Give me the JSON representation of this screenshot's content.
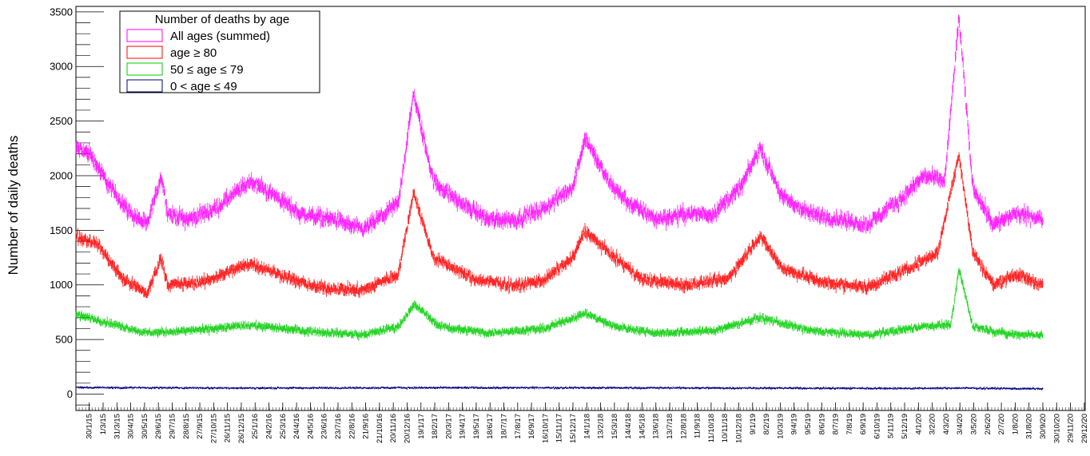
{
  "chart_data": {
    "type": "scatter",
    "title": "",
    "ylabel": "Number of daily deaths",
    "xlabel": "",
    "ylim": [
      -150,
      3550
    ],
    "yticks": [
      0,
      500,
      1000,
      1500,
      2000,
      2500,
      3000,
      3500
    ],
    "x_start": "2015-01-01",
    "x_end": "2020-12-31",
    "xtick_labels": [
      "30/1/15",
      "1/3/15",
      "31/3/15",
      "30/4/15",
      "30/5/15",
      "29/6/15",
      "29/7/15",
      "28/8/15",
      "27/9/15",
      "27/10/15",
      "26/11/15",
      "26/12/15",
      "25/1/16",
      "24/2/16",
      "25/3/16",
      "24/4/16",
      "24/5/16",
      "23/6/16",
      "23/7/16",
      "22/8/16",
      "21/9/16",
      "21/10/16",
      "20/11/16",
      "20/12/16",
      "19/1/17",
      "18/2/17",
      "20/3/17",
      "19/4/17",
      "19/5/17",
      "18/6/17",
      "18/7/17",
      "17/8/17",
      "16/9/17",
      "16/10/17",
      "15/11/17",
      "15/12/17",
      "14/1/18",
      "13/2/18",
      "15/3/18",
      "14/4/18",
      "14/5/18",
      "13/6/18",
      "13/7/18",
      "12/8/18",
      "11/9/18",
      "11/10/18",
      "10/11/18",
      "10/12/18",
      "9/1/19",
      "8/2/19",
      "10/3/19",
      "9/4/19",
      "9/5/19",
      "8/6/19",
      "8/7/19",
      "7/8/19",
      "6/9/19",
      "6/10/19",
      "5/11/19",
      "5/12/19",
      "4/1/20",
      "3/2/20",
      "4/3/20",
      "3/4/20",
      "3/5/20",
      "2/6/20",
      "2/7/20",
      "1/8/20",
      "31/8/20",
      "30/9/20",
      "30/10/20",
      "29/11/20",
      "29/12/20"
    ],
    "data_end": "2020-09-30",
    "legend": {
      "title": "Number of deaths by age",
      "placement": "top-left"
    },
    "series": [
      {
        "name": "All ages (summed)",
        "color": "#ff00ff",
        "approx_points": [
          [
            "2015-01-01",
            2250
          ],
          [
            "2015-02-01",
            2200
          ],
          [
            "2015-03-15",
            1900
          ],
          [
            "2015-05-01",
            1650
          ],
          [
            "2015-06-05",
            1550
          ],
          [
            "2015-07-05",
            2000
          ],
          [
            "2015-07-20",
            1650
          ],
          [
            "2015-09-01",
            1600
          ],
          [
            "2015-11-01",
            1700
          ],
          [
            "2016-01-15",
            1950
          ],
          [
            "2016-03-15",
            1800
          ],
          [
            "2016-05-01",
            1650
          ],
          [
            "2016-07-15",
            1600
          ],
          [
            "2016-09-15",
            1500
          ],
          [
            "2016-12-01",
            1750
          ],
          [
            "2017-01-03",
            2750
          ],
          [
            "2017-02-15",
            1950
          ],
          [
            "2017-04-15",
            1750
          ],
          [
            "2017-06-15",
            1600
          ],
          [
            "2017-08-15",
            1600
          ],
          [
            "2017-10-15",
            1700
          ],
          [
            "2017-12-15",
            1900
          ],
          [
            "2018-01-10",
            2350
          ],
          [
            "2018-03-01",
            1950
          ],
          [
            "2018-04-15",
            1750
          ],
          [
            "2018-06-15",
            1600
          ],
          [
            "2018-08-15",
            1650
          ],
          [
            "2018-10-15",
            1650
          ],
          [
            "2018-12-15",
            1900
          ],
          [
            "2019-01-25",
            2250
          ],
          [
            "2019-03-15",
            1800
          ],
          [
            "2019-05-15",
            1650
          ],
          [
            "2019-07-15",
            1600
          ],
          [
            "2019-09-15",
            1550
          ],
          [
            "2019-12-01",
            1800
          ],
          [
            "2020-01-15",
            2000
          ],
          [
            "2020-03-01",
            1950
          ],
          [
            "2020-04-01",
            3450
          ],
          [
            "2020-05-01",
            1900
          ],
          [
            "2020-06-15",
            1550
          ],
          [
            "2020-08-01",
            1650
          ],
          [
            "2020-09-30",
            1600
          ]
        ]
      },
      {
        "name": "age ≥ 80",
        "color": "#ff0000",
        "approx_points": [
          [
            "2015-01-01",
            1450
          ],
          [
            "2015-02-15",
            1380
          ],
          [
            "2015-04-15",
            1050
          ],
          [
            "2015-06-05",
            920
          ],
          [
            "2015-07-05",
            1250
          ],
          [
            "2015-07-20",
            1000
          ],
          [
            "2015-10-01",
            1020
          ],
          [
            "2016-01-15",
            1200
          ],
          [
            "2016-03-15",
            1100
          ],
          [
            "2016-06-01",
            980
          ],
          [
            "2016-09-15",
            950
          ],
          [
            "2016-12-01",
            1100
          ],
          [
            "2017-01-03",
            1850
          ],
          [
            "2017-02-15",
            1250
          ],
          [
            "2017-05-15",
            1050
          ],
          [
            "2017-08-15",
            990
          ],
          [
            "2017-10-15",
            1050
          ],
          [
            "2017-12-15",
            1250
          ],
          [
            "2018-01-10",
            1500
          ],
          [
            "2018-03-01",
            1300
          ],
          [
            "2018-05-15",
            1050
          ],
          [
            "2018-08-15",
            1000
          ],
          [
            "2018-11-15",
            1050
          ],
          [
            "2019-01-25",
            1450
          ],
          [
            "2019-03-15",
            1150
          ],
          [
            "2019-06-15",
            1020
          ],
          [
            "2019-09-15",
            980
          ],
          [
            "2019-12-15",
            1150
          ],
          [
            "2020-02-15",
            1300
          ],
          [
            "2020-04-01",
            2200
          ],
          [
            "2020-05-01",
            1300
          ],
          [
            "2020-06-15",
            1000
          ],
          [
            "2020-08-01",
            1100
          ],
          [
            "2020-09-30",
            1000
          ]
        ]
      },
      {
        "name": "50 ≤ age ≤ 79",
        "color": "#00cc00",
        "approx_points": [
          [
            "2015-01-01",
            730
          ],
          [
            "2015-03-15",
            650
          ],
          [
            "2015-06-01",
            560
          ],
          [
            "2015-09-01",
            580
          ],
          [
            "2016-01-15",
            630
          ],
          [
            "2016-05-15",
            580
          ],
          [
            "2016-09-15",
            540
          ],
          [
            "2016-12-01",
            620
          ],
          [
            "2017-01-05",
            820
          ],
          [
            "2017-03-01",
            620
          ],
          [
            "2017-06-15",
            560
          ],
          [
            "2017-10-15",
            600
          ],
          [
            "2018-01-10",
            740
          ],
          [
            "2018-03-15",
            620
          ],
          [
            "2018-06-15",
            560
          ],
          [
            "2018-10-15",
            580
          ],
          [
            "2019-01-25",
            700
          ],
          [
            "2019-05-15",
            580
          ],
          [
            "2019-09-15",
            540
          ],
          [
            "2020-01-15",
            620
          ],
          [
            "2020-03-15",
            640
          ],
          [
            "2020-04-01",
            1150
          ],
          [
            "2020-05-01",
            620
          ],
          [
            "2020-07-15",
            550
          ],
          [
            "2020-09-30",
            540
          ]
        ]
      },
      {
        "name": "0 < age ≤ 49",
        "color": "#000080",
        "approx_points": [
          [
            "2015-01-01",
            60
          ],
          [
            "2016-01-01",
            55
          ],
          [
            "2017-01-01",
            58
          ],
          [
            "2018-01-01",
            58
          ],
          [
            "2019-01-01",
            55
          ],
          [
            "2020-01-01",
            52
          ],
          [
            "2020-04-01",
            55
          ],
          [
            "2020-09-30",
            48
          ]
        ]
      }
    ]
  }
}
